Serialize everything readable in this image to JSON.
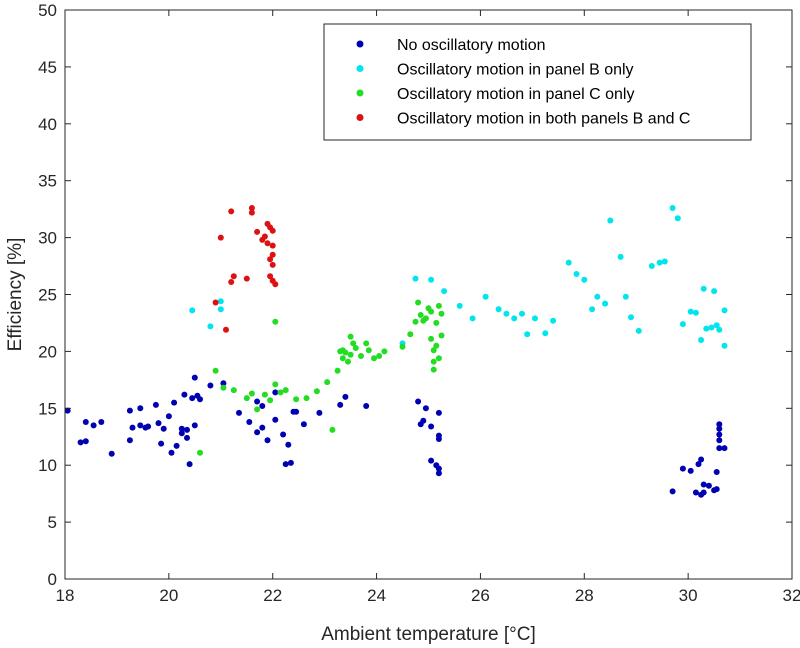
{
  "chart_data": {
    "type": "scatter",
    "title": "",
    "xlabel": "Ambient temperature [°C]",
    "ylabel": "Efficiency [%]",
    "xlim": [
      18,
      32
    ],
    "ylim": [
      0,
      50
    ],
    "xticks": [
      "18",
      "20",
      "22",
      "24",
      "26",
      "28",
      "30",
      "32"
    ],
    "yticks": [
      "0",
      "5",
      "10",
      "15",
      "20",
      "25",
      "30",
      "35",
      "40",
      "45",
      "50"
    ],
    "grid": false,
    "legend_position": "top-right",
    "series": [
      {
        "name": "No oscillatory motion",
        "color": "#0000b3",
        "points": [
          [
            18.05,
            14.8
          ],
          [
            18.3,
            12.0
          ],
          [
            18.4,
            12.1
          ],
          [
            18.4,
            13.8
          ],
          [
            18.55,
            13.5
          ],
          [
            18.7,
            13.8
          ],
          [
            18.9,
            11.0
          ],
          [
            19.25,
            14.8
          ],
          [
            19.25,
            12.2
          ],
          [
            19.3,
            13.3
          ],
          [
            19.45,
            15.0
          ],
          [
            19.45,
            13.5
          ],
          [
            19.55,
            13.3
          ],
          [
            19.6,
            13.4
          ],
          [
            19.75,
            15.3
          ],
          [
            19.8,
            13.7
          ],
          [
            19.85,
            11.9
          ],
          [
            19.9,
            13.2
          ],
          [
            20.0,
            14.3
          ],
          [
            20.05,
            11.1
          ],
          [
            20.1,
            15.5
          ],
          [
            20.15,
            11.7
          ],
          [
            20.25,
            13.2
          ],
          [
            20.25,
            12.8
          ],
          [
            20.3,
            16.2
          ],
          [
            20.35,
            13.1
          ],
          [
            20.35,
            12.4
          ],
          [
            20.4,
            10.1
          ],
          [
            20.45,
            15.9
          ],
          [
            20.5,
            17.7
          ],
          [
            20.55,
            16.1
          ],
          [
            20.6,
            15.8
          ],
          [
            20.5,
            13.5
          ],
          [
            20.8,
            17.0
          ],
          [
            21.05,
            17.2
          ],
          [
            21.35,
            14.6
          ],
          [
            21.55,
            13.8
          ],
          [
            21.7,
            15.6
          ],
          [
            21.7,
            12.9
          ],
          [
            21.8,
            13.3
          ],
          [
            21.8,
            15.2
          ],
          [
            21.9,
            12.2
          ],
          [
            22.05,
            14.0
          ],
          [
            22.05,
            16.4
          ],
          [
            22.2,
            12.7
          ],
          [
            22.25,
            10.1
          ],
          [
            22.3,
            11.8
          ],
          [
            22.35,
            10.2
          ],
          [
            22.4,
            14.7
          ],
          [
            22.45,
            14.7
          ],
          [
            22.6,
            13.6
          ],
          [
            22.9,
            14.6
          ],
          [
            23.3,
            15.3
          ],
          [
            23.4,
            16.0
          ],
          [
            23.8,
            15.2
          ],
          [
            24.8,
            15.6
          ],
          [
            24.85,
            13.6
          ],
          [
            24.9,
            13.9
          ],
          [
            24.95,
            15.0
          ],
          [
            25.05,
            10.4
          ],
          [
            25.05,
            13.4
          ],
          [
            25.15,
            10.0
          ],
          [
            25.2,
            14.6
          ],
          [
            25.2,
            12.6
          ],
          [
            25.2,
            12.3
          ],
          [
            25.2,
            9.7
          ],
          [
            25.2,
            9.3
          ],
          [
            29.7,
            7.7
          ],
          [
            29.9,
            9.7
          ],
          [
            30.05,
            9.5
          ],
          [
            30.15,
            7.6
          ],
          [
            30.2,
            10.1
          ],
          [
            30.25,
            10.5
          ],
          [
            30.25,
            7.4
          ],
          [
            30.3,
            8.3
          ],
          [
            30.3,
            7.6
          ],
          [
            30.4,
            8.2
          ],
          [
            30.5,
            7.8
          ],
          [
            30.55,
            7.9
          ],
          [
            30.55,
            9.4
          ],
          [
            30.6,
            11.5
          ],
          [
            30.6,
            12.2
          ],
          [
            30.6,
            12.7
          ],
          [
            30.6,
            13.2
          ],
          [
            30.6,
            13.6
          ],
          [
            30.7,
            11.5
          ]
        ]
      },
      {
        "name": "Oscillatory motion in panel B only",
        "color": "#00e5ee",
        "points": [
          [
            20.45,
            23.6
          ],
          [
            20.8,
            22.2
          ],
          [
            21.0,
            24.4
          ],
          [
            21.0,
            23.7
          ],
          [
            24.5,
            20.7
          ],
          [
            24.75,
            26.4
          ],
          [
            25.05,
            26.3
          ],
          [
            25.3,
            25.3
          ],
          [
            25.6,
            24.0
          ],
          [
            25.85,
            22.9
          ],
          [
            26.1,
            24.8
          ],
          [
            26.35,
            23.7
          ],
          [
            26.5,
            23.3
          ],
          [
            26.65,
            22.9
          ],
          [
            26.8,
            23.3
          ],
          [
            26.9,
            21.5
          ],
          [
            27.05,
            22.9
          ],
          [
            27.25,
            21.6
          ],
          [
            27.4,
            22.7
          ],
          [
            27.7,
            27.8
          ],
          [
            27.85,
            26.8
          ],
          [
            28.0,
            26.3
          ],
          [
            28.15,
            23.7
          ],
          [
            28.25,
            24.8
          ],
          [
            28.4,
            24.2
          ],
          [
            28.5,
            31.5
          ],
          [
            28.7,
            28.3
          ],
          [
            28.8,
            24.8
          ],
          [
            28.9,
            23.0
          ],
          [
            29.05,
            21.8
          ],
          [
            29.3,
            27.5
          ],
          [
            29.45,
            27.8
          ],
          [
            29.55,
            27.9
          ],
          [
            29.7,
            32.6
          ],
          [
            29.8,
            31.7
          ],
          [
            29.9,
            22.4
          ],
          [
            30.05,
            23.5
          ],
          [
            30.15,
            23.4
          ],
          [
            30.25,
            21.0
          ],
          [
            30.3,
            25.5
          ],
          [
            30.35,
            22.0
          ],
          [
            30.45,
            22.1
          ],
          [
            30.5,
            25.3
          ],
          [
            30.55,
            22.3
          ],
          [
            30.6,
            21.9
          ],
          [
            30.7,
            23.6
          ],
          [
            30.7,
            20.5
          ]
        ]
      },
      {
        "name": "Oscillatory motion in panel C only",
        "color": "#22dd22",
        "points": [
          [
            20.6,
            11.1
          ],
          [
            20.9,
            18.3
          ],
          [
            21.05,
            16.8
          ],
          [
            21.25,
            16.6
          ],
          [
            21.5,
            15.9
          ],
          [
            21.6,
            16.3
          ],
          [
            21.7,
            14.9
          ],
          [
            21.85,
            16.2
          ],
          [
            21.95,
            15.7
          ],
          [
            22.05,
            17.1
          ],
          [
            22.05,
            22.6
          ],
          [
            22.15,
            16.4
          ],
          [
            22.25,
            16.6
          ],
          [
            22.45,
            15.8
          ],
          [
            22.65,
            15.9
          ],
          [
            22.85,
            16.5
          ],
          [
            23.05,
            17.3
          ],
          [
            23.15,
            13.1
          ],
          [
            23.25,
            18.3
          ],
          [
            23.3,
            20.0
          ],
          [
            23.35,
            20.1
          ],
          [
            23.35,
            19.4
          ],
          [
            23.4,
            19.9
          ],
          [
            23.45,
            19.1
          ],
          [
            23.5,
            19.7
          ],
          [
            23.5,
            21.3
          ],
          [
            23.55,
            20.7
          ],
          [
            23.6,
            20.3
          ],
          [
            23.7,
            19.6
          ],
          [
            23.8,
            20.7
          ],
          [
            23.85,
            20.1
          ],
          [
            23.95,
            19.4
          ],
          [
            24.05,
            19.6
          ],
          [
            24.15,
            20.0
          ],
          [
            24.5,
            20.4
          ],
          [
            24.65,
            21.5
          ],
          [
            24.75,
            22.6
          ],
          [
            24.8,
            24.3
          ],
          [
            24.85,
            23.2
          ],
          [
            24.9,
            22.7
          ],
          [
            24.95,
            22.9
          ],
          [
            25.0,
            23.8
          ],
          [
            25.05,
            23.5
          ],
          [
            25.05,
            21.1
          ],
          [
            25.1,
            20.1
          ],
          [
            25.1,
            19.1
          ],
          [
            25.1,
            18.4
          ],
          [
            25.15,
            20.5
          ],
          [
            25.15,
            22.5
          ],
          [
            25.2,
            24.0
          ],
          [
            25.2,
            19.4
          ],
          [
            25.25,
            23.3
          ],
          [
            25.25,
            21.4
          ]
        ]
      },
      {
        "name": "Oscillatory motion in both panels B and C",
        "color": "#dd1111",
        "points": [
          [
            20.9,
            24.3
          ],
          [
            21.0,
            30.0
          ],
          [
            21.1,
            21.9
          ],
          [
            21.2,
            32.3
          ],
          [
            21.2,
            26.1
          ],
          [
            21.25,
            26.6
          ],
          [
            21.5,
            26.4
          ],
          [
            21.6,
            32.6
          ],
          [
            21.6,
            32.2
          ],
          [
            21.7,
            30.5
          ],
          [
            21.8,
            29.8
          ],
          [
            21.85,
            30.1
          ],
          [
            21.9,
            31.2
          ],
          [
            21.9,
            29.5
          ],
          [
            21.95,
            30.9
          ],
          [
            22.0,
            30.6
          ],
          [
            22.0,
            29.3
          ],
          [
            21.95,
            28.1
          ],
          [
            22.0,
            28.5
          ],
          [
            22.0,
            27.6
          ],
          [
            21.95,
            26.6
          ],
          [
            22.0,
            26.2
          ],
          [
            22.05,
            25.9
          ]
        ]
      }
    ]
  }
}
